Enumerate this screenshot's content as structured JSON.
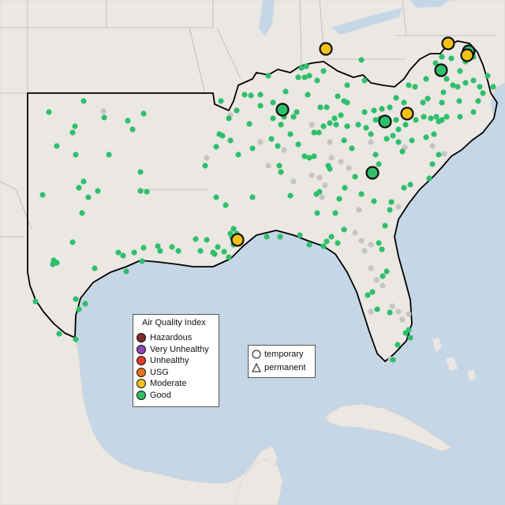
{
  "legend": {
    "title": "Air Quality Index",
    "categories": [
      {
        "label": "Hazardous",
        "color": "#7e2a2a"
      },
      {
        "label": "Very Unhealthy",
        "color": "#8f49b0"
      },
      {
        "label": "Unhealthy",
        "color": "#e03c2e"
      },
      {
        "label": "USG",
        "color": "#e8741e"
      },
      {
        "label": "Moderate",
        "color": "#f2c218"
      },
      {
        "label": "Good",
        "color": "#2fbf6a"
      }
    ]
  },
  "site_legend": {
    "temporary": "temporary",
    "permanent": "permanent"
  },
  "colors": {
    "water": "#c5d6e6",
    "land": "#ebe7e3",
    "state_border": "#b9b5b1",
    "region_outline": "#000000",
    "no_data": "#c4c4c4"
  }
}
